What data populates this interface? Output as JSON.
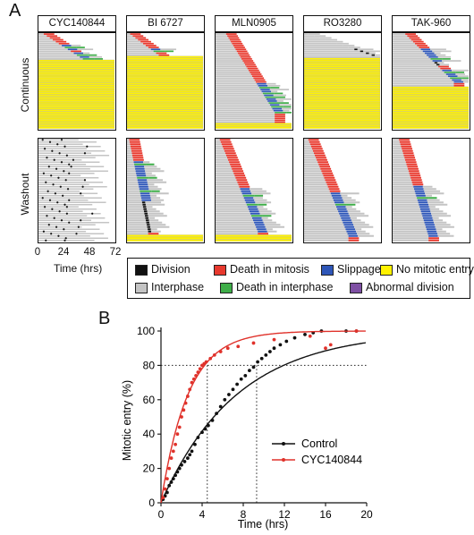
{
  "panel_a_label": "A",
  "panel_b_label": "B",
  "colors": {
    "division": "#111111",
    "death_in_mitosis": "#e8392e",
    "slippage": "#2e56b8",
    "no_mitotic_entry": "#fff200",
    "interphase": "#c4c4c4",
    "death_in_interphase": "#3fae49",
    "abnormal_division": "#7e4fa3",
    "control_line": "#111111",
    "cyc_line": "#e0322b"
  },
  "chart_data": [
    {
      "type": "timeline",
      "columns": [
        "CYC140844",
        "BI 6727",
        "MLN0905",
        "RO3280",
        "TAK-960"
      ],
      "rows": [
        "Continuous",
        "Washout"
      ],
      "xlabel": "Time (hrs)",
      "xticks": [
        0,
        24,
        48,
        72
      ],
      "xlim": [
        0,
        72
      ],
      "legend": [
        {
          "key": "division",
          "label": "Division"
        },
        {
          "key": "death_in_mitosis",
          "label": "Death in mitosis"
        },
        {
          "key": "slippage",
          "label": "Slippage"
        },
        {
          "key": "no_mitotic_entry",
          "label": "No mitotic entry"
        },
        {
          "key": "interphase",
          "label": "Interphase"
        },
        {
          "key": "death_in_interphase",
          "label": "Death in interphase"
        },
        {
          "key": "abnormal_division",
          "label": "Abnormal division"
        }
      ],
      "panels": {
        "continuous": [
          {
            "cells": 50,
            "mitotic_cells": 14,
            "mitotic_start": 5,
            "mitotic_end": 42,
            "fate_pattern": [
              "death_in_mitosis",
              "death_in_mitosis",
              "death_in_mitosis",
              "death_in_mitosis",
              "death_in_mitosis",
              "death_in_mitosis",
              "slippage",
              "death_in_interphase",
              "slippage",
              "death_in_mitosis",
              "slippage",
              "death_in_interphase",
              "slippage",
              "death_in_interphase"
            ],
            "no_entry_fraction": 0.72
          },
          {
            "cells": 50,
            "mitotic_cells": 12,
            "mitotic_start": 3,
            "mitotic_end": 30,
            "fate_pattern": [
              "death_in_mitosis",
              "death_in_mitosis",
              "death_in_mitosis",
              "death_in_mitosis",
              "death_in_mitosis",
              "death_in_mitosis",
              "death_in_mitosis",
              "death_in_mitosis",
              "slippage",
              "death_in_interphase",
              "death_in_mitosis",
              "death_in_mitosis"
            ],
            "no_entry_fraction": 0.76
          },
          {
            "cells": 50,
            "mitotic_cells": 42,
            "mitotic_start": 10,
            "mitotic_end": 56,
            "fate_pattern": [
              "death_in_mitosis",
              "death_in_mitosis",
              "death_in_mitosis",
              "death_in_mitosis",
              "death_in_mitosis",
              "death_in_mitosis",
              "death_in_mitosis",
              "death_in_mitosis",
              "death_in_mitosis",
              "death_in_mitosis",
              "death_in_mitosis",
              "death_in_mitosis",
              "death_in_mitosis",
              "death_in_mitosis",
              "death_in_mitosis",
              "death_in_mitosis",
              "death_in_mitosis",
              "death_in_mitosis",
              "death_in_mitosis",
              "death_in_mitosis",
              "death_in_mitosis",
              "death_in_mitosis",
              "death_in_mitosis",
              "death_in_mitosis",
              "death_in_mitosis",
              "death_in_mitosis",
              "slippage",
              "slippage",
              "death_in_interphase",
              "slippage",
              "slippage",
              "death_in_interphase",
              "slippage",
              "death_in_interphase",
              "slippage",
              "slippage",
              "death_in_interphase",
              "slippage",
              "death_in_interphase",
              "slippage",
              "slippage",
              "death_in_interphase"
            ],
            "no_entry_fraction": 0.06
          },
          {
            "cells": 50,
            "mitotic_cells": 12,
            "mitotic_start": 4,
            "mitotic_end": 64,
            "fate_pattern": [
              "interphase",
              "interphase",
              "interphase",
              "interphase",
              "interphase",
              "interphase",
              "interphase",
              "interphase",
              "division",
              "division",
              "division",
              "division"
            ],
            "no_entry_fraction": 0.74
          },
          {
            "cells": 50,
            "mitotic_cells": 26,
            "mitotic_start": 12,
            "mitotic_end": 58,
            "fate_pattern": [
              "death_in_mitosis",
              "death_in_mitosis",
              "death_in_mitosis",
              "death_in_mitosis",
              "death_in_mitosis",
              "death_in_mitosis",
              "death_in_mitosis",
              "death_in_mitosis",
              "slippage",
              "slippage",
              "slippage",
              "slippage",
              "slippage",
              "death_in_interphase",
              "slippage",
              "division",
              "division",
              "death_in_mitosis",
              "death_in_mitosis",
              "slippage",
              "death_in_interphase",
              "slippage",
              "slippage",
              "death_in_interphase",
              "slippage",
              "slippage"
            ],
            "no_entry_fraction": 0.44
          }
        ],
        "washout": [
          {
            "cells": 46,
            "mitotic_cells": 46,
            "mitotic_start": 2,
            "mitotic_end": 34,
            "fate_pattern": [
              "division"
            ],
            "no_entry_fraction": 0.0
          },
          {
            "cells": 46,
            "mitotic_cells": 42,
            "mitotic_start": 2,
            "mitotic_end": 20,
            "fate_pattern": [
              "death_in_mitosis",
              "death_in_mitosis",
              "death_in_mitosis",
              "death_in_mitosis",
              "death_in_mitosis",
              "death_in_mitosis",
              "death_in_mitosis",
              "death_in_mitosis",
              "death_in_mitosis",
              "death_in_mitosis",
              "slippage",
              "death_in_interphase",
              "slippage",
              "slippage",
              "slippage",
              "slippage",
              "slippage",
              "death_in_interphase",
              "slippage",
              "slippage",
              "slippage",
              "slippage",
              "slippage",
              "death_in_interphase",
              "slippage",
              "slippage",
              "slippage",
              "slippage",
              "division",
              "division",
              "division",
              "division",
              "division",
              "division",
              "division",
              "division",
              "division",
              "division",
              "division",
              "division",
              "division",
              "division"
            ],
            "no_entry_fraction": 0.06
          },
          {
            "cells": 46,
            "mitotic_cells": 42,
            "mitotic_start": 4,
            "mitotic_end": 40,
            "fate_pattern": [
              "death_in_mitosis",
              "death_in_mitosis",
              "death_in_mitosis",
              "death_in_mitosis",
              "death_in_mitosis",
              "death_in_mitosis",
              "death_in_mitosis",
              "death_in_mitosis",
              "death_in_mitosis",
              "death_in_mitosis",
              "death_in_mitosis",
              "death_in_mitosis",
              "death_in_mitosis",
              "death_in_mitosis",
              "death_in_mitosis",
              "death_in_mitosis",
              "death_in_mitosis",
              "death_in_mitosis",
              "death_in_mitosis",
              "death_in_mitosis",
              "death_in_mitosis",
              "death_in_mitosis",
              "slippage",
              "slippage",
              "slippage",
              "death_in_interphase",
              "slippage",
              "slippage",
              "slippage",
              "death_in_interphase",
              "slippage",
              "slippage",
              "slippage",
              "slippage",
              "death_in_interphase",
              "slippage",
              "slippage",
              "slippage",
              "slippage",
              "slippage",
              "slippage",
              "slippage"
            ],
            "no_entry_fraction": 0.06
          },
          {
            "cells": 46,
            "mitotic_cells": 44,
            "mitotic_start": 4,
            "mitotic_end": 42,
            "fate_pattern": [
              "death_in_mitosis",
              "death_in_mitosis",
              "death_in_mitosis",
              "death_in_mitosis",
              "death_in_mitosis",
              "death_in_mitosis",
              "death_in_mitosis",
              "death_in_mitosis",
              "death_in_mitosis",
              "death_in_mitosis",
              "death_in_mitosis",
              "death_in_mitosis",
              "death_in_mitosis",
              "death_in_mitosis",
              "death_in_mitosis",
              "death_in_mitosis",
              "death_in_mitosis",
              "death_in_mitosis",
              "death_in_mitosis",
              "death_in_mitosis",
              "death_in_mitosis",
              "death_in_mitosis",
              "death_in_mitosis",
              "death_in_mitosis",
              "slippage",
              "slippage",
              "slippage",
              "slippage",
              "slippage",
              "death_in_interphase",
              "slippage",
              "slippage",
              "slippage",
              "slippage",
              "slippage",
              "slippage",
              "slippage",
              "slippage",
              "slippage",
              "slippage",
              "slippage",
              "slippage",
              "slippage",
              "slippage"
            ],
            "no_entry_fraction": 0.0
          },
          {
            "cells": 46,
            "mitotic_cells": 44,
            "mitotic_start": 6,
            "mitotic_end": 34,
            "fate_pattern": [
              "death_in_mitosis",
              "death_in_mitosis",
              "death_in_mitosis",
              "death_in_mitosis",
              "death_in_mitosis",
              "death_in_mitosis",
              "death_in_mitosis",
              "death_in_mitosis",
              "death_in_mitosis",
              "death_in_mitosis",
              "death_in_mitosis",
              "death_in_mitosis",
              "death_in_mitosis",
              "death_in_mitosis",
              "death_in_mitosis",
              "death_in_mitosis",
              "death_in_mitosis",
              "death_in_mitosis",
              "death_in_mitosis",
              "death_in_mitosis",
              "death_in_mitosis",
              "slippage",
              "slippage",
              "slippage",
              "slippage",
              "slippage",
              "death_in_interphase",
              "slippage",
              "slippage",
              "slippage",
              "slippage",
              "slippage",
              "slippage",
              "slippage",
              "slippage",
              "slippage",
              "slippage",
              "slippage",
              "slippage",
              "slippage",
              "slippage",
              "slippage",
              "slippage",
              "slippage"
            ],
            "no_entry_fraction": 0.0
          }
        ]
      }
    },
    {
      "type": "line",
      "xlabel": "Time (hrs)",
      "ylabel": "Mitotic entry (%)",
      "xlim": [
        0,
        20
      ],
      "ylim": [
        0,
        100
      ],
      "xticks": [
        0,
        4,
        8,
        12,
        16,
        20
      ],
      "yticks": [
        0,
        20,
        40,
        60,
        80,
        100
      ],
      "reference_lines": {
        "y": 80,
        "x": [
          4.5,
          9.3
        ]
      },
      "legend_position": "bottom-right",
      "series": [
        {
          "name": "Control",
          "color_key": "control_line",
          "points": [
            [
              0.2,
              2
            ],
            [
              0.4,
              4
            ],
            [
              0.6,
              6
            ],
            [
              0.8,
              10
            ],
            [
              1.0,
              12
            ],
            [
              1.2,
              14
            ],
            [
              1.4,
              16
            ],
            [
              1.6,
              18
            ],
            [
              1.8,
              20
            ],
            [
              2.0,
              22
            ],
            [
              2.3,
              24
            ],
            [
              2.6,
              26
            ],
            [
              2.8,
              28
            ],
            [
              3.0,
              30
            ],
            [
              3.3,
              34
            ],
            [
              3.6,
              38
            ],
            [
              4.0,
              41
            ],
            [
              4.3,
              43
            ],
            [
              4.6,
              45
            ],
            [
              5.0,
              48
            ],
            [
              5.4,
              52
            ],
            [
              5.8,
              56
            ],
            [
              6.2,
              60
            ],
            [
              6.6,
              63
            ],
            [
              7.0,
              66
            ],
            [
              7.4,
              69
            ],
            [
              7.8,
              72
            ],
            [
              8.2,
              74
            ],
            [
              8.6,
              77
            ],
            [
              9.0,
              79
            ],
            [
              9.4,
              82
            ],
            [
              9.8,
              84
            ],
            [
              10.2,
              86
            ],
            [
              10.6,
              88
            ],
            [
              11.0,
              90
            ],
            [
              11.6,
              92
            ],
            [
              12.2,
              94
            ],
            [
              13.0,
              96
            ],
            [
              14.0,
              98
            ],
            [
              14.8,
              99
            ],
            [
              15.6,
              100
            ],
            [
              18.0,
              100
            ],
            [
              19.0,
              100
            ]
          ],
          "fit": {
            "model": "one-phase association",
            "plateau": 100,
            "k": 0.135
          }
        },
        {
          "name": "CYC140844",
          "color_key": "cyc_line",
          "points": [
            [
              0.2,
              3
            ],
            [
              0.4,
              8
            ],
            [
              0.6,
              14
            ],
            [
              0.8,
              20
            ],
            [
              1.0,
              26
            ],
            [
              1.2,
              30
            ],
            [
              1.4,
              34
            ],
            [
              1.6,
              40
            ],
            [
              1.8,
              44
            ],
            [
              2.0,
              50
            ],
            [
              2.2,
              54
            ],
            [
              2.4,
              58
            ],
            [
              2.6,
              62
            ],
            [
              2.8,
              66
            ],
            [
              3.0,
              70
            ],
            [
              3.2,
              72
            ],
            [
              3.4,
              74
            ],
            [
              3.6,
              76
            ],
            [
              3.8,
              78
            ],
            [
              4.0,
              80
            ],
            [
              4.2,
              81
            ],
            [
              4.4,
              82
            ],
            [
              4.8,
              84
            ],
            [
              5.2,
              86
            ],
            [
              5.8,
              88
            ],
            [
              6.5,
              90
            ],
            [
              7.5,
              91
            ],
            [
              9.0,
              93
            ],
            [
              11.0,
              95
            ],
            [
              14.5,
              97
            ],
            [
              16.0,
              90
            ],
            [
              16.5,
              92
            ],
            [
              19.0,
              100
            ]
          ],
          "fit": {
            "model": "one-phase association",
            "plateau": 100,
            "k": 0.38
          }
        }
      ]
    }
  ]
}
